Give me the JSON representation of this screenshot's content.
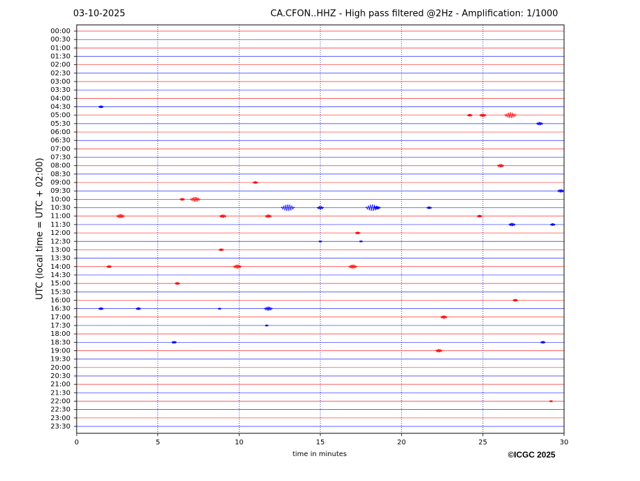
{
  "chart_data": {
    "type": "helicorder",
    "title_left": "03-10-2025",
    "title": "CA.CFON..HHZ - High pass filtered @2Hz - Amplification: 1/1000",
    "xlabel": "time in minutes",
    "ylabel": "UTC (local time = UTC + 02:00)",
    "footer": "©ICGC 2025",
    "xlim": [
      0,
      30
    ],
    "xticks": [
      0,
      5,
      10,
      15,
      20,
      25,
      30
    ],
    "grid": true,
    "grid_color": "#00008b",
    "colors": [
      "#ff0000",
      "#0000ff"
    ],
    "traces": [
      {
        "label": "00:00",
        "bursts": []
      },
      {
        "label": "00:30",
        "bursts": []
      },
      {
        "label": "01:00",
        "bursts": []
      },
      {
        "label": "01:30",
        "bursts": []
      },
      {
        "label": "02:00",
        "bursts": []
      },
      {
        "label": "02:30",
        "bursts": []
      },
      {
        "label": "03:00",
        "bursts": []
      },
      {
        "label": "03:30",
        "bursts": []
      },
      {
        "label": "04:00",
        "bursts": []
      },
      {
        "label": "04:30",
        "bursts": [
          {
            "x": 1.5,
            "amplitude": 0.15
          }
        ]
      },
      {
        "label": "05:00",
        "bursts": [
          {
            "x": 24.2,
            "amplitude": 0.15
          },
          {
            "x": 25,
            "amplitude": 0.2
          },
          {
            "x": 26.7,
            "amplitude": 0.35
          }
        ]
      },
      {
        "label": "05:30",
        "bursts": [
          {
            "x": 28.5,
            "amplitude": 0.2
          }
        ]
      },
      {
        "label": "06:00",
        "bursts": []
      },
      {
        "label": "06:30",
        "bursts": []
      },
      {
        "label": "07:00",
        "bursts": []
      },
      {
        "label": "07:30",
        "bursts": []
      },
      {
        "label": "08:00",
        "bursts": [
          {
            "x": 26.1,
            "amplitude": 0.2
          }
        ]
      },
      {
        "label": "08:30",
        "bursts": []
      },
      {
        "label": "09:00",
        "bursts": [
          {
            "x": 11,
            "amplitude": 0.15
          }
        ]
      },
      {
        "label": "09:30",
        "bursts": [
          {
            "x": 29.8,
            "amplitude": 0.2
          }
        ]
      },
      {
        "label": "10:00",
        "bursts": [
          {
            "x": 6.5,
            "amplitude": 0.15
          },
          {
            "x": 7.3,
            "amplitude": 0.3
          }
        ]
      },
      {
        "label": "10:30",
        "bursts": [
          {
            "x": 13,
            "amplitude": 0.4
          },
          {
            "x": 15,
            "amplitude": 0.2
          },
          {
            "x": 18.2,
            "amplitude": 0.4
          },
          {
            "x": 18.5,
            "amplitude": 0.2
          },
          {
            "x": 21.7,
            "amplitude": 0.15
          }
        ]
      },
      {
        "label": "11:00",
        "bursts": [
          {
            "x": 2.7,
            "amplitude": 0.25
          },
          {
            "x": 9,
            "amplitude": 0.2
          },
          {
            "x": 11.8,
            "amplitude": 0.2
          },
          {
            "x": 24.8,
            "amplitude": 0.15
          }
        ]
      },
      {
        "label": "11:30",
        "bursts": [
          {
            "x": 26.8,
            "amplitude": 0.2
          },
          {
            "x": 29.3,
            "amplitude": 0.15
          }
        ]
      },
      {
        "label": "12:00",
        "bursts": [
          {
            "x": 17.3,
            "amplitude": 0.15
          }
        ]
      },
      {
        "label": "12:30",
        "bursts": [
          {
            "x": 15,
            "amplitude": 0.1
          },
          {
            "x": 17.5,
            "amplitude": 0.1
          }
        ]
      },
      {
        "label": "13:00",
        "bursts": [
          {
            "x": 8.9,
            "amplitude": 0.15
          }
        ]
      },
      {
        "label": "13:30",
        "bursts": []
      },
      {
        "label": "14:00",
        "bursts": [
          {
            "x": 2,
            "amplitude": 0.15
          },
          {
            "x": 9.9,
            "amplitude": 0.25
          },
          {
            "x": 17,
            "amplitude": 0.25
          }
        ]
      },
      {
        "label": "14:30",
        "bursts": []
      },
      {
        "label": "15:00",
        "bursts": [
          {
            "x": 6.2,
            "amplitude": 0.15
          }
        ]
      },
      {
        "label": "15:30",
        "bursts": []
      },
      {
        "label": "16:00",
        "bursts": [
          {
            "x": 27,
            "amplitude": 0.15
          }
        ]
      },
      {
        "label": "16:30",
        "bursts": [
          {
            "x": 1.5,
            "amplitude": 0.15
          },
          {
            "x": 3.8,
            "amplitude": 0.15
          },
          {
            "x": 8.8,
            "amplitude": 0.1
          },
          {
            "x": 11.8,
            "amplitude": 0.25
          }
        ]
      },
      {
        "label": "17:00",
        "bursts": [
          {
            "x": 22.6,
            "amplitude": 0.2
          }
        ]
      },
      {
        "label": "17:30",
        "bursts": [
          {
            "x": 11.7,
            "amplitude": 0.1
          }
        ]
      },
      {
        "label": "18:00",
        "bursts": []
      },
      {
        "label": "18:30",
        "bursts": [
          {
            "x": 6,
            "amplitude": 0.15
          },
          {
            "x": 28.7,
            "amplitude": 0.15
          }
        ]
      },
      {
        "label": "19:00",
        "bursts": [
          {
            "x": 22.3,
            "amplitude": 0.2
          }
        ]
      },
      {
        "label": "19:30",
        "bursts": []
      },
      {
        "label": "20:00",
        "bursts": []
      },
      {
        "label": "20:30",
        "bursts": []
      },
      {
        "label": "21:00",
        "bursts": []
      },
      {
        "label": "21:30",
        "bursts": []
      },
      {
        "label": "22:00",
        "bursts": [
          {
            "x": 29.2,
            "amplitude": 0.1
          }
        ]
      },
      {
        "label": "22:30",
        "bursts": []
      },
      {
        "label": "23:00",
        "bursts": []
      },
      {
        "label": "23:30",
        "bursts": []
      }
    ]
  }
}
